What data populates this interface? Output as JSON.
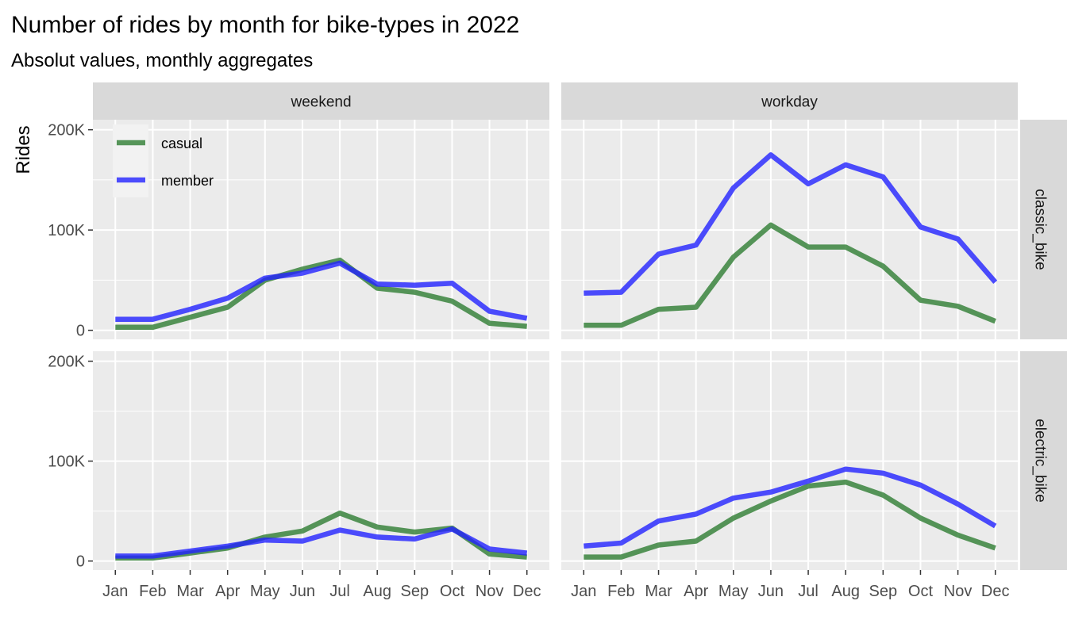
{
  "chart_data": {
    "type": "line",
    "title": "Number of rides by month for bike-types in 2022",
    "subtitle": "Absolut values, monthly aggregates",
    "xlabel": "",
    "ylabel": "Rides",
    "categories": [
      "Jan",
      "Feb",
      "Mar",
      "Apr",
      "May",
      "Jun",
      "Jul",
      "Aug",
      "Sep",
      "Oct",
      "Nov",
      "Dec"
    ],
    "ylim": [
      -9000,
      210000
    ],
    "yticks": [
      0,
      100000,
      200000
    ],
    "ytick_labels": [
      "0",
      "100K",
      "200K"
    ],
    "grid": true,
    "legend": {
      "position": "top-left inside first panel",
      "entries": [
        {
          "name": "casual",
          "color": "#2e7d32"
        },
        {
          "name": "member",
          "color": "#2222ff"
        }
      ]
    },
    "col_facets": [
      "weekend",
      "workday"
    ],
    "row_facets": [
      "classic_bike",
      "electric_bike"
    ],
    "panels": [
      {
        "col": "weekend",
        "row": "classic_bike",
        "series": [
          {
            "name": "casual",
            "values": [
              3000,
              3000,
              13000,
              23000,
              50000,
              61000,
              70000,
              42000,
              38000,
              29000,
              7000,
              4000
            ]
          },
          {
            "name": "member",
            "values": [
              11000,
              11000,
              21000,
              32000,
              52000,
              57000,
              67000,
              46000,
              45000,
              47000,
              19000,
              12000
            ]
          }
        ]
      },
      {
        "col": "workday",
        "row": "classic_bike",
        "series": [
          {
            "name": "casual",
            "values": [
              5000,
              5000,
              21000,
              23000,
              73000,
              105000,
              83000,
              83000,
              64000,
              30000,
              24000,
              9000
            ]
          },
          {
            "name": "member",
            "values": [
              37000,
              38000,
              76000,
              85000,
              142000,
              175000,
              146000,
              165000,
              153000,
              103000,
              91000,
              48000
            ]
          }
        ]
      },
      {
        "col": "weekend",
        "row": "electric_bike",
        "series": [
          {
            "name": "casual",
            "values": [
              3000,
              3000,
              8000,
              13000,
              24000,
              30000,
              48000,
              34000,
              29000,
              33000,
              7000,
              4000
            ]
          },
          {
            "name": "member",
            "values": [
              5000,
              5000,
              10000,
              15000,
              21000,
              20000,
              31000,
              24000,
              22000,
              32000,
              12000,
              8000
            ]
          }
        ]
      },
      {
        "col": "workday",
        "row": "electric_bike",
        "series": [
          {
            "name": "casual",
            "values": [
              4000,
              4000,
              16000,
              20000,
              43000,
              60000,
              75000,
              79000,
              66000,
              43000,
              26000,
              13000
            ]
          },
          {
            "name": "member",
            "values": [
              15000,
              18000,
              40000,
              47000,
              63000,
              69000,
              80000,
              92000,
              88000,
              76000,
              57000,
              35000
            ]
          }
        ]
      }
    ]
  }
}
